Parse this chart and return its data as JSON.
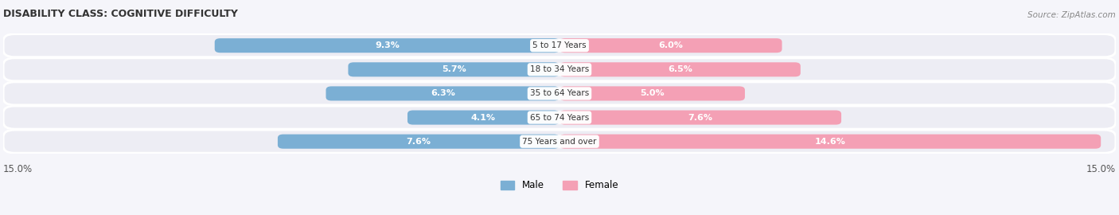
{
  "title": "DISABILITY CLASS: COGNITIVE DIFFICULTY",
  "source": "Source: ZipAtlas.com",
  "categories": [
    "5 to 17 Years",
    "18 to 34 Years",
    "35 to 64 Years",
    "65 to 74 Years",
    "75 Years and over"
  ],
  "male_values": [
    9.3,
    5.7,
    6.3,
    4.1,
    7.6
  ],
  "female_values": [
    6.0,
    6.5,
    5.0,
    7.6,
    14.6
  ],
  "max_val": 15.0,
  "male_color": "#7bafd4",
  "female_color": "#f4a0b5",
  "row_bg_color": "#ededf4",
  "title_color": "#333333",
  "source_color": "#888888",
  "label_dark_color": "#555555",
  "label_light_color": "#ffffff"
}
